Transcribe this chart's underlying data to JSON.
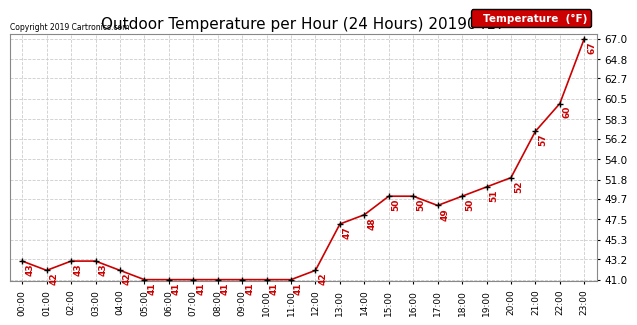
{
  "title": "Outdoor Temperature per Hour (24 Hours) 20190417",
  "copyright": "Copyright 2019 Cartronics.com",
  "legend_label": "Temperature  (°F)",
  "hours": [
    "00:00",
    "01:00",
    "02:00",
    "03:00",
    "04:00",
    "05:00",
    "06:00",
    "07:00",
    "08:00",
    "09:00",
    "10:00",
    "11:00",
    "12:00",
    "13:00",
    "14:00",
    "15:00",
    "16:00",
    "17:00",
    "18:00",
    "19:00",
    "20:00",
    "21:00",
    "22:00",
    "23:00"
  ],
  "temps": [
    43,
    42,
    43,
    43,
    42,
    41,
    41,
    41,
    41,
    41,
    41,
    41,
    42,
    47,
    48,
    50,
    50,
    49,
    50,
    51,
    52,
    57,
    60,
    67
  ],
  "ylim_min": 41.0,
  "ylim_max": 67.0,
  "line_color": "#cc0000",
  "marker_color": "#000000",
  "grid_color": "#cccccc",
  "bg_color": "#ffffff",
  "legend_bg": "#cc0000",
  "legend_text_color": "#ffffff",
  "title_fontsize": 11,
  "ytick_labels": [
    "41.0",
    "43.2",
    "45.3",
    "47.5",
    "49.7",
    "51.8",
    "54.0",
    "56.2",
    "58.3",
    "60.5",
    "62.7",
    "64.8",
    "67.0"
  ],
  "ytick_vals": [
    41.0,
    43.2,
    45.3,
    47.5,
    49.7,
    51.8,
    54.0,
    56.2,
    58.3,
    60.5,
    62.7,
    64.8,
    67.0
  ]
}
